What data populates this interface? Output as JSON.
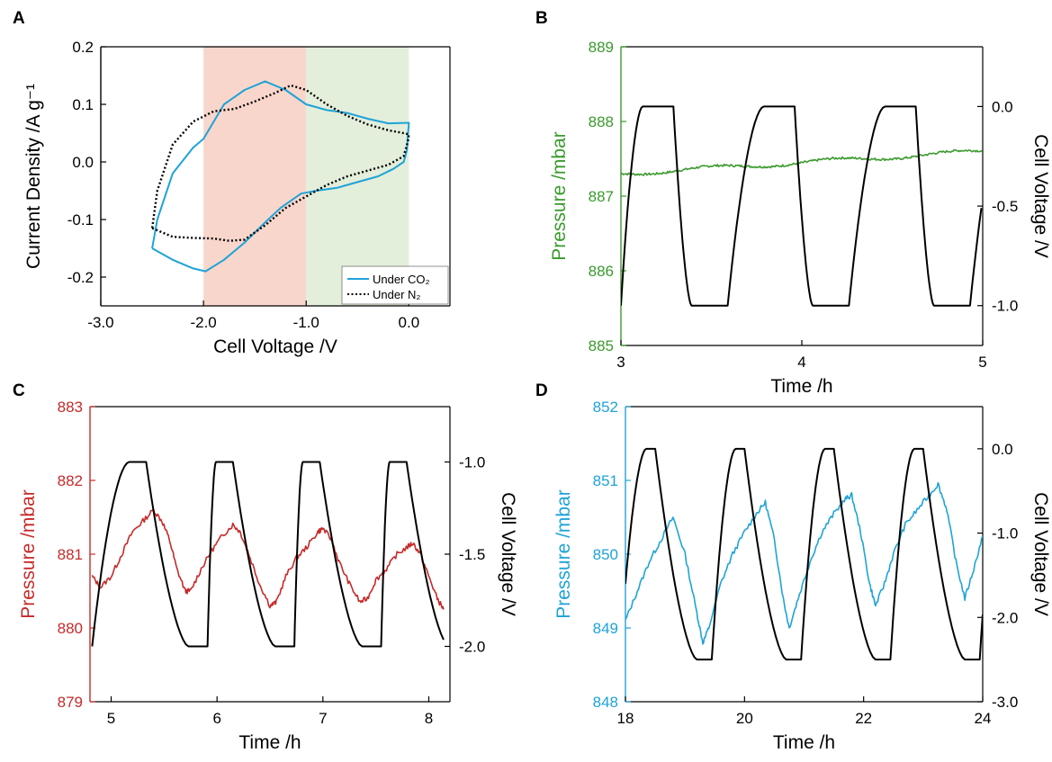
{
  "figure": {
    "panel_labels": [
      "A",
      "B",
      "C",
      "D"
    ],
    "colors": {
      "blue": "#1ea3d8",
      "green": "#3a9a2d",
      "red": "#c62a2a",
      "black": "#000000",
      "shade_red": "#f9d6cb",
      "shade_green": "#e3eedb"
    }
  },
  "chart_data": [
    {
      "id": "A",
      "type": "line",
      "xlabel": "Cell Voltage /V",
      "ylabel": "Current Density /A g⁻¹",
      "xlim": [
        -3.0,
        0.4
      ],
      "ylim": [
        -0.25,
        0.2
      ],
      "xticks": [
        -3.0,
        -2.0,
        -1.0,
        0.0
      ],
      "xtick_labels": [
        "-3.0",
        "-2.0",
        "-1.0",
        "0.0"
      ],
      "yticks": [
        -0.2,
        -0.1,
        0.0,
        0.1,
        0.2
      ],
      "ytick_labels": [
        "-0.2",
        "-0.1",
        "0.0",
        "0.1",
        "0.2"
      ],
      "shaded_regions": [
        {
          "x": [
            -2.0,
            -1.0
          ],
          "color": "#f9d6cb"
        },
        {
          "x": [
            -1.0,
            0.0
          ],
          "color": "#e3eedb"
        }
      ],
      "legend_position": "bottom-right",
      "series": [
        {
          "name": "Under CO₂",
          "color": "#1ea3d8",
          "style": "solid",
          "x": [
            -2.5,
            -2.3,
            -2.1,
            -1.98,
            -1.8,
            -1.6,
            -1.4,
            -1.25,
            -1.05,
            -0.9,
            -0.7,
            -0.5,
            -0.3,
            -0.15,
            -0.05,
            -0.02,
            -0.01,
            0.0,
            0.0,
            -0.2,
            -0.4,
            -0.6,
            -0.8,
            -1.0,
            -1.2,
            -1.4,
            -1.6,
            -1.8,
            -2.0,
            -2.1,
            -2.3,
            -2.45,
            -2.5
          ],
          "y": [
            -0.15,
            -0.17,
            -0.185,
            -0.19,
            -0.17,
            -0.14,
            -0.105,
            -0.08,
            -0.055,
            -0.05,
            -0.045,
            -0.035,
            -0.025,
            -0.012,
            0.0,
            0.02,
            0.045,
            0.068,
            0.068,
            0.067,
            0.075,
            0.085,
            0.09,
            0.1,
            0.125,
            0.14,
            0.125,
            0.1,
            0.04,
            0.025,
            -0.02,
            -0.1,
            -0.15
          ]
        },
        {
          "name": "Under N₂",
          "color": "#000000",
          "style": "dotted",
          "x": [
            -2.5,
            -2.3,
            -2.1,
            -1.9,
            -1.75,
            -1.6,
            -1.4,
            -1.2,
            -1.0,
            -0.8,
            -0.6,
            -0.4,
            -0.2,
            -0.05,
            -0.01,
            0.0,
            -0.05,
            -0.2,
            -0.4,
            -0.6,
            -0.8,
            -1.0,
            -1.15,
            -1.3,
            -1.5,
            -1.7,
            -1.9,
            -2.1,
            -2.3,
            -2.45,
            -2.5
          ],
          "y": [
            -0.115,
            -0.13,
            -0.132,
            -0.133,
            -0.137,
            -0.135,
            -0.11,
            -0.08,
            -0.06,
            -0.04,
            -0.025,
            -0.015,
            -0.005,
            0.01,
            0.035,
            0.048,
            0.05,
            0.055,
            0.065,
            0.08,
            0.1,
            0.125,
            0.133,
            0.12,
            0.105,
            0.092,
            0.088,
            0.07,
            0.03,
            -0.05,
            -0.115
          ]
        }
      ]
    },
    {
      "id": "B",
      "type": "line",
      "xlabel": "Time /h",
      "ylabel": "Pressure /mbar",
      "ylabel_right": "Cell Voltage /V",
      "xlim": [
        3,
        5
      ],
      "ylim": [
        885,
        889
      ],
      "ylim_right": [
        -1.2,
        0.3
      ],
      "xticks": [
        3,
        4,
        5
      ],
      "yticks": [
        885,
        886,
        887,
        888,
        889
      ],
      "yticks_right": [
        -1.0,
        -0.5,
        0.0
      ],
      "ytick_labels_right": [
        "-1.0",
        "-0.5",
        "0.0"
      ],
      "left_axis_color": "#3a9a2d",
      "pressure": {
        "color": "#3a9a2d",
        "base": 887.3,
        "drift": 0.3,
        "wave_amp": 0.03,
        "noise": 0.03
      },
      "voltage": {
        "color": "#000000",
        "high": 0.0,
        "low": -1.0,
        "t_start": 3.12,
        "period": 0.67,
        "hold_high": 0.17,
        "fall": 0.1,
        "hold_low": 0.2,
        "rise": 0.2,
        "t_end": 5.0
      }
    },
    {
      "id": "C",
      "type": "line",
      "xlabel": "Time /h",
      "ylabel": "Pressure /mbar",
      "ylabel_right": "Cell Voltage /V",
      "xlim": [
        4.8,
        8.2
      ],
      "ylim": [
        879,
        883
      ],
      "ylim_right": [
        -2.3,
        -0.7
      ],
      "xticks": [
        5,
        6,
        7,
        8
      ],
      "yticks": [
        879,
        880,
        881,
        882,
        883
      ],
      "yticks_right": [
        -2.0,
        -1.5,
        -1.0
      ],
      "ytick_labels_right": [
        "-2.0",
        "-1.5",
        "-1.0"
      ],
      "left_axis_color": "#c62a2a",
      "pressure": {
        "color": "#c62a2a",
        "x": [
          4.82,
          4.9,
          5.0,
          5.1,
          5.2,
          5.3,
          5.4,
          5.48,
          5.55,
          5.62,
          5.7,
          5.75,
          5.85,
          5.95,
          6.05,
          6.15,
          6.22,
          6.3,
          6.4,
          6.5,
          6.56,
          6.65,
          6.75,
          6.85,
          6.95,
          7.0,
          7.08,
          7.15,
          7.25,
          7.35,
          7.42,
          7.5,
          7.6,
          7.7,
          7.8,
          7.85,
          7.92,
          8.0,
          8.08,
          8.14
        ],
        "y": [
          880.7,
          880.55,
          880.7,
          881.0,
          881.3,
          881.45,
          881.6,
          881.45,
          881.2,
          880.8,
          880.5,
          880.5,
          880.8,
          881.05,
          881.25,
          881.4,
          881.3,
          881.0,
          880.6,
          880.3,
          880.35,
          880.7,
          880.95,
          881.1,
          881.3,
          881.35,
          881.2,
          880.9,
          880.6,
          880.35,
          880.4,
          880.65,
          880.8,
          881.0,
          881.1,
          881.15,
          881.0,
          880.7,
          880.4,
          880.25
        ]
      },
      "voltage": {
        "color": "#000000",
        "high": -1.0,
        "low": -2.0,
        "t_start": 5.17,
        "period": 0.82,
        "hold_high": 0.16,
        "fall": 0.4,
        "hold_low": 0.18,
        "rise": 0.08,
        "t_end": 8.15,
        "lead_low": 4.82
      }
    },
    {
      "id": "D",
      "type": "line",
      "xlabel": "Time /h",
      "ylabel": "Pressure /mbar",
      "ylabel_right": "Cell Voltage /V",
      "xlim": [
        18,
        24
      ],
      "ylim": [
        848,
        852
      ],
      "ylim_right": [
        -3.0,
        0.5
      ],
      "xticks": [
        18,
        20,
        22,
        24
      ],
      "yticks": [
        848,
        849,
        850,
        851,
        852
      ],
      "yticks_right": [
        -3.0,
        -2.0,
        -1.0,
        0.0
      ],
      "ytick_labels_right": [
        "-3.0",
        "-2.0",
        "-1.0",
        "0.0"
      ],
      "left_axis_color": "#1ea3d8",
      "pressure": {
        "color": "#1ea3d8",
        "x": [
          18.0,
          18.2,
          18.4,
          18.6,
          18.8,
          19.0,
          19.2,
          19.3,
          19.4,
          19.6,
          19.8,
          20.0,
          20.2,
          20.35,
          20.5,
          20.65,
          20.75,
          20.9,
          21.1,
          21.3,
          21.5,
          21.7,
          21.8,
          21.95,
          22.1,
          22.2,
          22.35,
          22.5,
          22.7,
          22.9,
          23.1,
          23.25,
          23.4,
          23.55,
          23.7,
          23.85,
          24.0
        ],
        "y": [
          849.1,
          849.5,
          849.9,
          850.2,
          850.5,
          850.0,
          849.2,
          848.8,
          849.0,
          849.6,
          850.0,
          850.3,
          850.55,
          850.7,
          850.2,
          849.4,
          849.0,
          849.4,
          849.9,
          850.3,
          850.55,
          850.75,
          850.8,
          850.3,
          849.6,
          849.3,
          849.6,
          850.0,
          850.4,
          850.6,
          850.8,
          850.95,
          850.6,
          849.9,
          849.4,
          849.8,
          850.25
        ]
      },
      "voltage": {
        "color": "#000000",
        "high": 0.0,
        "low": -2.5,
        "t_start": 18.35,
        "period": 1.5,
        "hold_high": 0.15,
        "fall": 0.7,
        "hold_low": 0.25,
        "rise": 0.4,
        "t_end": 24.0,
        "lead_from": 18.0,
        "lead_value": -1.6
      }
    }
  ]
}
